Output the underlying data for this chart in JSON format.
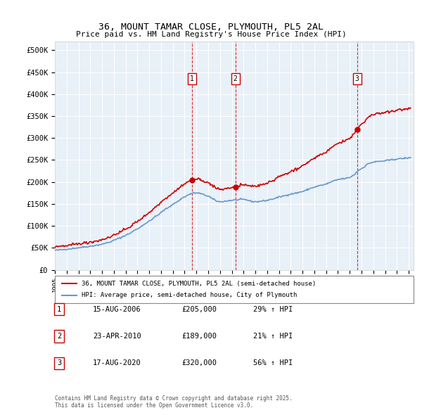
{
  "title": "36, MOUNT TAMAR CLOSE, PLYMOUTH, PL5 2AL",
  "subtitle": "Price paid vs. HM Land Registry's House Price Index (HPI)",
  "ylabel": "",
  "ylim": [
    0,
    520000
  ],
  "yticks": [
    0,
    50000,
    100000,
    150000,
    200000,
    250000,
    300000,
    350000,
    400000,
    450000,
    500000
  ],
  "ytick_labels": [
    "£0",
    "£50K",
    "£100K",
    "£150K",
    "£200K",
    "£250K",
    "£300K",
    "£350K",
    "£400K",
    "£450K",
    "£500K"
  ],
  "bg_color": "#e8f0f8",
  "plot_bg_color": "#e8f0f8",
  "grid_color": "#ffffff",
  "sale_dates": [
    "2006-08-15",
    "2010-04-23",
    "2020-08-17"
  ],
  "sale_prices": [
    205000,
    189000,
    320000
  ],
  "sale_labels": [
    "1",
    "2",
    "3"
  ],
  "legend_house": "36, MOUNT TAMAR CLOSE, PLYMOUTH, PL5 2AL (semi-detached house)",
  "legend_hpi": "HPI: Average price, semi-detached house, City of Plymouth",
  "table_entries": [
    {
      "num": "1",
      "date": "15-AUG-2006",
      "price": "£205,000",
      "change": "29% ↑ HPI"
    },
    {
      "num": "2",
      "date": "23-APR-2010",
      "price": "£189,000",
      "change": "21% ↑ HPI"
    },
    {
      "num": "3",
      "date": "17-AUG-2020",
      "price": "£320,000",
      "change": "56% ↑ HPI"
    }
  ],
  "footnote": "Contains HM Land Registry data © Crown copyright and database right 2025.\nThis data is licensed under the Open Government Licence v3.0.",
  "house_line_color": "#cc0000",
  "hpi_line_color": "#6699cc",
  "vline_color": "#cc0000",
  "x_start_year": 1995,
  "x_end_year": 2025
}
